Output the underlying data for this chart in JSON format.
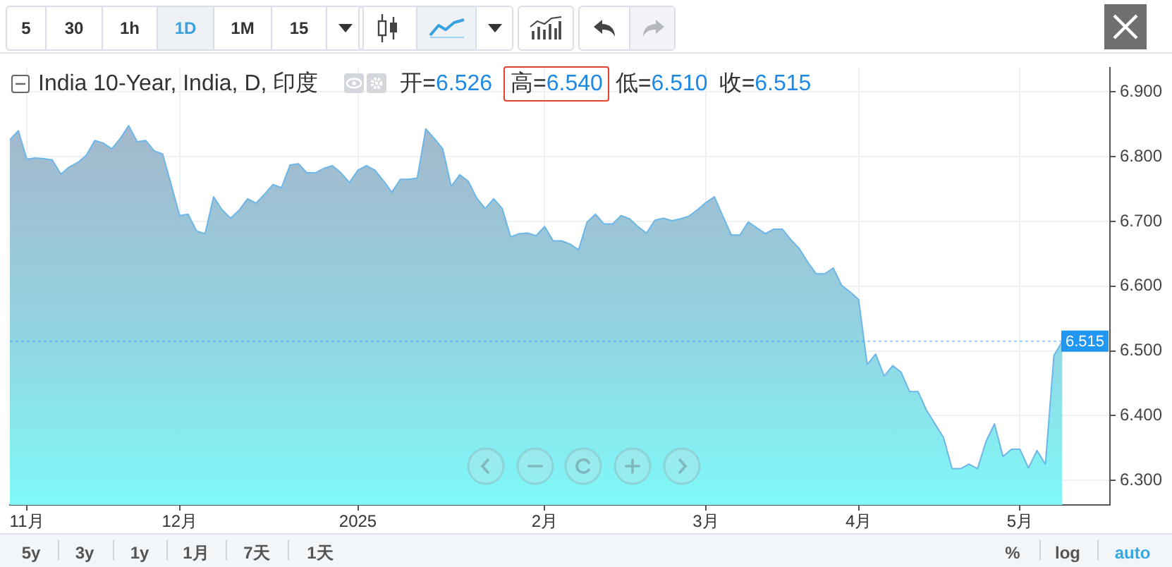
{
  "chart_data": {
    "type": "area",
    "title": "India 10-Year, India, D, 印度",
    "annotations": [
      "开=6.526",
      "高=6.540",
      "低=6.510",
      "收=6.515",
      "5",
      "30",
      "1h",
      "1D",
      "1M",
      "15",
      "5y",
      "3y",
      "1y",
      "1月",
      "7天",
      "1天",
      "%",
      "log",
      "auto"
    ],
    "categories": [
      null,
      null,
      "11月",
      null,
      null,
      null,
      null,
      null,
      null,
      null,
      null,
      null,
      null,
      null,
      null,
      null,
      null,
      null,
      null,
      null,
      "12月",
      null,
      null,
      null,
      null,
      null,
      null,
      null,
      null,
      null,
      null,
      null,
      null,
      null,
      null,
      null,
      null,
      null,
      null,
      null,
      null,
      "2025",
      null,
      null,
      null,
      null,
      null,
      null,
      null,
      null,
      null,
      null,
      null,
      null,
      null,
      null,
      null,
      null,
      null,
      null,
      null,
      null,
      null,
      "2月",
      null,
      null,
      null,
      null,
      null,
      null,
      null,
      null,
      null,
      null,
      null,
      null,
      null,
      null,
      null,
      null,
      null,
      null,
      "3月",
      null,
      null,
      null,
      null,
      null,
      null,
      null,
      null,
      null,
      null,
      null,
      null,
      null,
      null,
      null,
      null,
      null,
      "4月",
      null,
      null,
      null,
      null,
      null,
      null,
      null,
      null,
      null,
      null,
      null,
      null,
      null,
      null,
      null,
      null,
      null,
      null,
      "5月",
      null,
      null,
      null,
      null,
      null
    ],
    "values": [
      6.826,
      6.84,
      6.796,
      6.798,
      6.797,
      6.795,
      6.773,
      6.784,
      6.791,
      6.802,
      6.825,
      6.821,
      6.812,
      6.828,
      6.848,
      6.823,
      6.825,
      6.809,
      6.804,
      6.757,
      6.709,
      6.711,
      6.685,
      6.681,
      6.738,
      6.718,
      6.705,
      6.717,
      6.735,
      6.728,
      6.742,
      6.757,
      6.752,
      6.787,
      6.789,
      6.775,
      6.775,
      6.782,
      6.786,
      6.775,
      6.76,
      6.779,
      6.786,
      6.779,
      6.763,
      6.745,
      6.765,
      6.765,
      6.767,
      6.843,
      6.828,
      6.812,
      6.754,
      6.772,
      6.762,
      6.736,
      6.72,
      6.735,
      6.72,
      6.676,
      6.681,
      6.682,
      6.678,
      6.692,
      6.67,
      6.67,
      6.665,
      6.656,
      6.699,
      6.711,
      6.696,
      6.696,
      6.709,
      6.704,
      6.692,
      6.682,
      6.702,
      6.705,
      6.701,
      6.704,
      6.708,
      6.718,
      6.729,
      6.738,
      6.708,
      6.679,
      6.679,
      6.699,
      6.69,
      6.681,
      6.688,
      6.688,
      6.672,
      6.658,
      6.637,
      6.619,
      6.619,
      6.628,
      6.601,
      6.591,
      6.579,
      6.479,
      6.495,
      6.461,
      6.477,
      6.467,
      6.437,
      6.437,
      6.408,
      6.387,
      6.366,
      6.318,
      6.318,
      6.325,
      6.318,
      6.36,
      6.387,
      6.337,
      6.348,
      6.348,
      6.319,
      6.346,
      6.325,
      6.493,
      6.515
    ],
    "color": "#93d3e2",
    "ylim": [
      6.262,
      6.937
    ],
    "yticks": [
      {
        "value": 6.3,
        "label": "6.300"
      },
      {
        "value": 6.4,
        "label": "6.400"
      },
      {
        "value": 6.5,
        "label": "6.500"
      },
      {
        "value": 6.6,
        "label": "6.600"
      },
      {
        "value": 6.7,
        "label": "6.700"
      },
      {
        "value": 6.8,
        "label": "6.800"
      },
      {
        "value": 6.9,
        "label": "6.900"
      }
    ],
    "ref_lines": [
      {
        "axis": "y",
        "value": 6.515,
        "label": "6.515",
        "color": "#2196f3",
        "line_style": "dotted"
      }
    ],
    "grid": true,
    "marker": "none"
  }
}
